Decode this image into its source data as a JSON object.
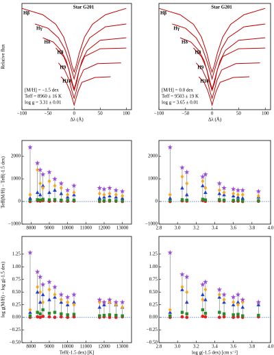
{
  "chart_data": [
    {
      "type": "line",
      "title": "Star G201",
      "xlabel": "Δλ (Å)",
      "ylabel": "Relative flux",
      "xlim": [
        -100,
        110
      ],
      "ylim": [
        0,
        3
      ],
      "xticks": [
        {
          "value": -100,
          "label": "−100"
        },
        {
          "value": -50,
          "label": "−50"
        },
        0,
        50,
        100
      ],
      "annotations": [
        "[M/H] = −1.5 dex",
        "Teff = 8960 ± 16 K",
        "log g = 3.31 ± 0.01"
      ],
      "color": "#c00000",
      "series": [
        {
          "name": "Hβ",
          "x": [
            -100,
            -60,
            -35,
            -20,
            -10,
            -4,
            0,
            4,
            10,
            20,
            35,
            60,
            100
          ],
          "values": [
            2.86,
            2.68,
            2.41,
            2.05,
            1.6,
            1.24,
            1.06,
            1.24,
            1.6,
            2.05,
            2.41,
            2.68,
            2.86
          ]
        },
        {
          "name": "Hγ",
          "x": [
            -75,
            -50,
            -30,
            -18,
            -9,
            -3,
            0,
            3,
            9,
            18,
            30,
            60,
            100
          ],
          "values": [
            2.42,
            2.3,
            2.03,
            1.72,
            1.34,
            1.03,
            0.87,
            1.03,
            1.34,
            1.72,
            2.03,
            2.34,
            2.42
          ]
        },
        {
          "name": "Hδ",
          "x": [
            -60,
            -40,
            -25,
            -15,
            -8,
            -3,
            0,
            3,
            8,
            15,
            25,
            50,
            100
          ],
          "values": [
            2.03,
            1.91,
            1.67,
            1.38,
            1.02,
            0.73,
            0.58,
            0.73,
            1.02,
            1.38,
            1.67,
            1.96,
            2.03
          ]
        },
        {
          "name": "H8",
          "x": [
            -35,
            -20,
            -10,
            -5,
            0,
            5,
            10,
            20,
            50,
            100
          ],
          "values": [
            1.74,
            1.5,
            1.14,
            0.78,
            0.54,
            0.78,
            1.14,
            1.5,
            1.72,
            1.74
          ]
        },
        {
          "name": "H9",
          "x": [
            -30,
            -18,
            -9,
            -4,
            0,
            4,
            9,
            18,
            45,
            90
          ],
          "values": [
            1.32,
            1.12,
            0.82,
            0.52,
            0.32,
            0.52,
            0.82,
            1.12,
            1.3,
            1.32
          ]
        },
        {
          "name": "H10",
          "x": [
            -25,
            -15,
            -8,
            -3,
            0,
            3,
            8,
            15,
            40,
            70
          ],
          "values": [
            0.93,
            0.77,
            0.53,
            0.29,
            0.13,
            0.29,
            0.53,
            0.77,
            0.91,
            0.93
          ]
        }
      ]
    },
    {
      "type": "line",
      "title": "Star G201",
      "xlabel": "Δλ (Å)",
      "xlim": [
        -100,
        110
      ],
      "ylim": [
        0,
        3
      ],
      "xticks": [
        {
          "value": -100,
          "label": "−100"
        },
        {
          "value": -50,
          "label": "−50"
        },
        0,
        50,
        100
      ],
      "annotations": [
        "[M/H] = 0.0 dex",
        "Teff = 9503 ± 19 K",
        "log g = 3.65 ± 0.01"
      ],
      "color": "#c00000",
      "series": [
        {
          "name": "Hβ",
          "x": [
            -100,
            -60,
            -35,
            -20,
            -10,
            -4,
            0,
            4,
            10,
            20,
            35,
            60,
            100
          ],
          "values": [
            2.86,
            2.68,
            2.41,
            2.05,
            1.6,
            1.24,
            1.06,
            1.24,
            1.6,
            2.05,
            2.41,
            2.68,
            2.86
          ]
        },
        {
          "name": "Hγ",
          "x": [
            -75,
            -50,
            -30,
            -18,
            -9,
            -3,
            0,
            3,
            9,
            18,
            30,
            60,
            100
          ],
          "values": [
            2.42,
            2.3,
            2.03,
            1.72,
            1.34,
            1.03,
            0.87,
            1.03,
            1.34,
            1.72,
            2.03,
            2.34,
            2.42
          ]
        },
        {
          "name": "Hδ",
          "x": [
            -60,
            -40,
            -25,
            -15,
            -8,
            -3,
            0,
            3,
            8,
            15,
            25,
            50,
            100
          ],
          "values": [
            2.03,
            1.91,
            1.67,
            1.38,
            1.02,
            0.73,
            0.58,
            0.73,
            1.02,
            1.38,
            1.67,
            1.96,
            2.03
          ]
        },
        {
          "name": "H8",
          "x": [
            -35,
            -20,
            -10,
            -5,
            0,
            5,
            10,
            20,
            50,
            100
          ],
          "values": [
            1.74,
            1.5,
            1.14,
            0.78,
            0.54,
            0.78,
            1.14,
            1.5,
            1.72,
            1.74
          ]
        },
        {
          "name": "H9",
          "x": [
            -30,
            -18,
            -9,
            -4,
            0,
            4,
            9,
            18,
            45,
            90
          ],
          "values": [
            1.32,
            1.12,
            0.82,
            0.52,
            0.32,
            0.52,
            0.82,
            1.12,
            1.3,
            1.32
          ]
        },
        {
          "name": "H10",
          "x": [
            -25,
            -15,
            -8,
            -3,
            0,
            3,
            8,
            15,
            40,
            70
          ],
          "values": [
            0.93,
            0.77,
            0.53,
            0.29,
            0.13,
            0.29,
            0.53,
            0.77,
            0.91,
            0.93
          ]
        }
      ]
    },
    {
      "type": "scatter",
      "ylabel": "Teff(M/H) − Teff(-1.5 dex)",
      "xlim": [
        7500,
        13500
      ],
      "ylim": [
        -1000,
        2700
      ],
      "xticks": [
        8000,
        9000,
        10000,
        11000,
        12000,
        13000
      ],
      "yticks": [
        {
          "value": -1000,
          "label": "−1000"
        },
        0,
        1000,
        2000
      ],
      "x": [
        7950,
        8350,
        8500,
        8650,
        9000,
        9300,
        9650,
        10000,
        10350,
        11750,
        12000,
        12300,
        12650,
        13000
      ],
      "series": [
        {
          "marker": "circle",
          "color": "#e02020",
          "values": [
            0,
            30,
            20,
            40,
            10,
            30,
            20,
            10,
            20,
            0,
            10,
            20,
            10,
            0
          ]
        },
        {
          "marker": "square",
          "color": "#2a8a2a",
          "values": [
            50,
            80,
            60,
            100,
            70,
            80,
            60,
            50,
            60,
            30,
            40,
            50,
            40,
            30
          ]
        },
        {
          "marker": "triangle",
          "color": "#1f3fcf",
          "values": [
            150,
            400,
            300,
            700,
            400,
            500,
            350,
            200,
            300,
            150,
            200,
            250,
            200,
            150
          ]
        },
        {
          "marker": "diamond",
          "color": "#f5a623",
          "values": [
            300,
            1400,
            800,
            600,
            900,
            700,
            600,
            300,
            400,
            350,
            300,
            350,
            300,
            250
          ]
        },
        {
          "marker": "star",
          "color": "#9b4fd8",
          "values": [
            2400,
            1700,
            1400,
            1200,
            1300,
            1000,
            800,
            500,
            700,
            600,
            550,
            600,
            500,
            450
          ]
        }
      ]
    },
    {
      "type": "scatter",
      "xlim": [
        2.8,
        4.0
      ],
      "ylim": [
        -1000,
        2700
      ],
      "xticks": [
        2.8,
        {
          "value": 3.0,
          "label": "3.0"
        },
        3.2,
        3.4,
        3.6,
        3.8,
        {
          "value": 4.0,
          "label": "4.0"
        }
      ],
      "yticks": [
        {
          "value": -1000,
          "label": "−1000"
        },
        0,
        1000,
        2000
      ],
      "x": [
        2.92,
        3.05,
        3.1,
        3.27,
        3.3,
        3.45,
        3.5,
        3.6,
        3.65,
        3.7,
        3.87
      ],
      "series": [
        {
          "marker": "circle",
          "color": "#e02020",
          "values": [
            0,
            30,
            20,
            40,
            10,
            30,
            20,
            10,
            20,
            0,
            10
          ]
        },
        {
          "marker": "square",
          "color": "#2a8a2a",
          "values": [
            50,
            80,
            60,
            100,
            70,
            80,
            60,
            50,
            60,
            30,
            40
          ]
        },
        {
          "marker": "triangle",
          "color": "#1f3fcf",
          "values": [
            150,
            600,
            300,
            700,
            400,
            350,
            300,
            250,
            200,
            150,
            200
          ]
        },
        {
          "marker": "diamond",
          "color": "#f5a623",
          "values": [
            300,
            1100,
            800,
            900,
            600,
            500,
            400,
            350,
            300,
            300,
            250
          ]
        },
        {
          "marker": "star",
          "color": "#9b4fd8",
          "values": [
            2400,
            1500,
            1300,
            1100,
            1200,
            800,
            600,
            550,
            500,
            500,
            450
          ]
        }
      ]
    },
    {
      "type": "scatter",
      "ylabel": "log g(M/H) − log g(-1.5 dex)",
      "xlabel": "Teff(-1.5 dex) [K]",
      "xlim": [
        7500,
        13500
      ],
      "ylim": [
        -0.5,
        1.6
      ],
      "xticks": [
        8000,
        9000,
        10000,
        11000,
        12000,
        13000
      ],
      "yticks": [
        {
          "value": -0.5,
          "label": "−0.50"
        },
        {
          "value": -0.25,
          "label": "−0.25"
        },
        {
          "value": 0,
          "label": "0.00"
        },
        0.25,
        {
          "value": 0.5,
          "label": "0.50"
        },
        0.75,
        {
          "value": 1,
          "label": "1.00"
        },
        1.25
      ],
      "x": [
        7950,
        8350,
        8500,
        8650,
        9000,
        9300,
        9650,
        10000,
        10350,
        11750,
        12000,
        12300,
        12650,
        13000
      ],
      "series": [
        {
          "marker": "circle",
          "color": "#e02020",
          "values": [
            0,
            0.01,
            0,
            0.02,
            0.01,
            0,
            0.01,
            0,
            0.01,
            0,
            0.01,
            0,
            0,
            0.01
          ]
        },
        {
          "marker": "square",
          "color": "#2a8a2a",
          "values": [
            0.03,
            0.1,
            0.07,
            0.15,
            0.08,
            0.1,
            0.07,
            0.05,
            0.06,
            0.03,
            0.04,
            0.05,
            0.04,
            0.03
          ]
        },
        {
          "marker": "triangle",
          "color": "#1f3fcf",
          "values": [
            0.1,
            0.5,
            0.3,
            0.45,
            0.35,
            0.4,
            0.3,
            0.25,
            0.3,
            0.2,
            0.25,
            0.3,
            0.25,
            0.2
          ]
        },
        {
          "marker": "diamond",
          "color": "#f5a623",
          "values": [
            0.15,
            0.6,
            0.5,
            0.3,
            0.55,
            0.45,
            0.35,
            0.3,
            0.25,
            0.3,
            0.3,
            0.3,
            0.25,
            0.2
          ]
        },
        {
          "marker": "star",
          "color": "#9b4fd8",
          "values": [
            1.28,
            0.9,
            0.8,
            0.65,
            0.7,
            0.6,
            0.45,
            0.4,
            0.45,
            0.35,
            0.3,
            0.35,
            0.3,
            0.3
          ]
        }
      ]
    },
    {
      "type": "scatter",
      "xlabel": "log g(-1.5 dex) [cm s⁻²]",
      "xlim": [
        2.8,
        4.0
      ],
      "ylim": [
        -0.5,
        1.6
      ],
      "xticks": [
        2.8,
        {
          "value": 3.0,
          "label": "3.0"
        },
        3.2,
        3.4,
        3.6,
        3.8,
        {
          "value": 4.0,
          "label": "4.0"
        }
      ],
      "yticks": [
        {
          "value": -0.5,
          "label": "−0.50"
        },
        {
          "value": -0.25,
          "label": "−0.25"
        },
        {
          "value": 0,
          "label": "0.00"
        },
        0.25,
        {
          "value": 0.5,
          "label": "0.50"
        },
        0.75,
        {
          "value": 1,
          "label": "1.00"
        },
        1.25
      ],
      "x": [
        2.92,
        3.05,
        3.1,
        3.27,
        3.3,
        3.45,
        3.5,
        3.6,
        3.65,
        3.7,
        3.87
      ],
      "series": [
        {
          "marker": "circle",
          "color": "#e02020",
          "values": [
            0,
            0.01,
            0,
            0.02,
            0.01,
            0,
            0.01,
            0,
            0.01,
            0,
            0.01
          ]
        },
        {
          "marker": "square",
          "color": "#2a8a2a",
          "values": [
            0.03,
            0.1,
            0.07,
            0.15,
            0.08,
            0.1,
            0.07,
            0.05,
            0.06,
            0.03,
            0.04
          ]
        },
        {
          "marker": "triangle",
          "color": "#1f3fcf",
          "values": [
            0.1,
            0.55,
            0.3,
            0.45,
            0.35,
            0.4,
            0.3,
            0.25,
            0.3,
            0.2,
            0.25
          ]
        },
        {
          "marker": "diamond",
          "color": "#f5a623",
          "values": [
            0.15,
            0.6,
            0.5,
            0.35,
            0.55,
            0.45,
            0.35,
            0.3,
            0.25,
            0.3,
            0.3
          ]
        },
        {
          "marker": "star",
          "color": "#9b4fd8",
          "values": [
            1.28,
            0.85,
            0.8,
            0.65,
            0.7,
            0.55,
            0.45,
            0.4,
            0.45,
            0.35,
            0.3
          ]
        }
      ]
    }
  ]
}
